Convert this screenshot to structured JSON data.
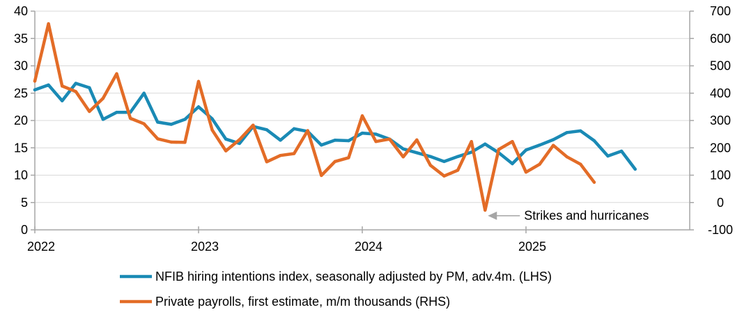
{
  "chart_data": {
    "type": "line",
    "title": "",
    "x_ticks": [
      "2022",
      "2023",
      "2024",
      "2025"
    ],
    "x_range": [
      "2022-01",
      "2026-01"
    ],
    "y_left": {
      "range": [
        0,
        40
      ],
      "ticks": [
        "0",
        "5",
        "10",
        "15",
        "20",
        "25",
        "30",
        "35",
        "40"
      ]
    },
    "y_right": {
      "range": [
        -100,
        700
      ],
      "ticks": [
        "-100",
        "0",
        "100",
        "200",
        "300",
        "400",
        "500",
        "600",
        "700"
      ]
    },
    "grid": "horizontal",
    "legend_position": "bottom",
    "series": [
      {
        "name": "NFIB hiring intentions index, seasonally adjusted by PM, adv.4m. (LHS)",
        "axis": "left",
        "color": "#1a8ab5",
        "x": [
          "2022-01",
          "2022-02",
          "2022-03",
          "2022-04",
          "2022-05",
          "2022-06",
          "2022-07",
          "2022-08",
          "2022-09",
          "2022-10",
          "2022-11",
          "2022-12",
          "2023-01",
          "2023-02",
          "2023-03",
          "2023-04",
          "2023-05",
          "2023-06",
          "2023-07",
          "2023-08",
          "2023-09",
          "2023-10",
          "2023-11",
          "2023-12",
          "2024-01",
          "2024-02",
          "2024-03",
          "2024-04",
          "2024-05",
          "2024-06",
          "2024-07",
          "2024-08",
          "2024-09",
          "2024-10",
          "2024-11",
          "2024-12",
          "2025-01",
          "2025-02",
          "2025-03",
          "2025-04",
          "2025-05",
          "2025-06",
          "2025-07",
          "2025-08",
          "2025-09"
        ],
        "values": [
          25.6,
          26.5,
          23.6,
          26.8,
          26.0,
          20.2,
          21.5,
          21.5,
          25.0,
          19.7,
          19.3,
          20.2,
          22.5,
          20.3,
          16.6,
          15.8,
          18.9,
          18.3,
          16.4,
          18.5,
          18.0,
          15.5,
          16.4,
          16.3,
          17.7,
          17.5,
          16.6,
          14.8,
          14.1,
          13.4,
          12.5,
          13.4,
          14.2,
          15.7,
          14.1,
          12.1,
          14.6,
          15.5,
          16.5,
          17.8,
          18.1,
          16.3,
          13.5,
          14.4,
          11.1
        ]
      },
      {
        "name": "Private payrolls, first estimate, m/m thousands (RHS)",
        "axis": "right",
        "color": "#e36c27",
        "x": [
          "2022-01",
          "2022-02",
          "2022-03",
          "2022-04",
          "2022-05",
          "2022-06",
          "2022-07",
          "2022-08",
          "2022-09",
          "2022-10",
          "2022-11",
          "2022-12",
          "2023-01",
          "2023-02",
          "2023-03",
          "2023-04",
          "2023-05",
          "2023-06",
          "2023-07",
          "2023-08",
          "2023-09",
          "2023-10",
          "2023-11",
          "2023-12",
          "2024-01",
          "2024-02",
          "2024-03",
          "2024-04",
          "2024-05",
          "2024-06",
          "2024-07",
          "2024-08",
          "2024-09",
          "2024-10",
          "2024-11",
          "2024-12",
          "2025-01",
          "2025-02",
          "2025-03",
          "2025-04",
          "2025-05",
          "2025-06"
        ],
        "values": [
          444,
          654,
          426,
          406,
          333,
          381,
          471,
          308,
          288,
          233,
          221,
          220,
          443,
          265,
          189,
          230,
          283,
          149,
          172,
          179,
          263,
          99,
          150,
          164,
          317,
          223,
          232,
          167,
          229,
          136,
          97,
          118,
          223,
          -28,
          194,
          223,
          111,
          140,
          209,
          167,
          140,
          74
        ]
      }
    ],
    "annotations": [
      {
        "text": "Strikes and hurricanes",
        "target_x": "2024-10",
        "target_y_right": -28
      }
    ]
  }
}
